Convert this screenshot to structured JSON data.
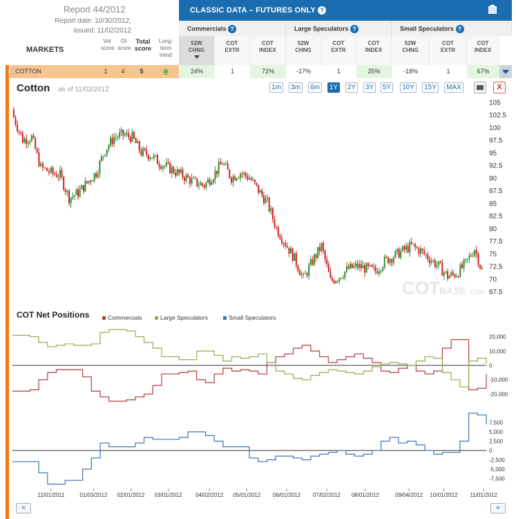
{
  "report": {
    "title": "Report 44/2012",
    "date_line": "Report date: 10/30/2012,",
    "issued_line": "issued: 11/02/2012"
  },
  "header": {
    "markets": "MARKETS",
    "vol_score": "Vol score",
    "oi_score": "OI score",
    "total_score": "Total score",
    "long_term_trend": "Long-term trend",
    "classic_title": "CLASSIC DATA – FUTURES ONLY",
    "help_mark": "?",
    "groups": [
      "Commercials",
      "Large Speculators",
      "Small Speculators"
    ],
    "columns": [
      "52W CHNG",
      "COT EXTR",
      "COT INDEX",
      "52W CHNG",
      "COT EXTR",
      "COT INDEX",
      "52W CHNG",
      "COT EXTR",
      "COT INDEX"
    ]
  },
  "row": {
    "market": "COTTON",
    "vol_score": "1",
    "oi_score": "4",
    "total_score": "5",
    "trend_icon": "up-arrow-icon",
    "trend_color": "#6cbf3c",
    "values": [
      "24%",
      "1",
      "72%",
      "-17%",
      "1",
      "25%",
      "-18%",
      "1",
      "67%"
    ]
  },
  "toolbar": {
    "title": "Cotton",
    "as_of": "as of 11/02/2012",
    "ranges": [
      "1m",
      "3m",
      "6m",
      "1Y",
      "2Y",
      "3Y",
      "5Y",
      "10Y",
      "15Y",
      "MAX"
    ],
    "active_range": "1Y",
    "close_label": "X",
    "print_icon": "print-icon"
  },
  "watermark": {
    "cot": "COT",
    "base": "BASE",
    "com": ".COM"
  },
  "cot_section": {
    "title": "COT Net Positions"
  },
  "nav": {
    "prev": "«",
    "next": "»"
  },
  "colors": {
    "brand_blue": "#1a6db0",
    "orange": "#f47a0f",
    "candle_up": "#2e8b2e",
    "candle_down": "#cc1f1f",
    "commercials": "#b53a3a",
    "large_specs": "#8db04a",
    "small_specs": "#3a73b5"
  },
  "chart_data": [
    {
      "type": "candlestick",
      "title": "Cotton",
      "x_ticks": [
        "12/01/2011",
        "01/03/2012",
        "02/01/2012",
        "03/01/2012",
        "04/02/2012",
        "05/01/2012",
        "06/01/2012",
        "07/02/2012",
        "08/01/2012",
        "09/04/2012",
        "10/01/2012",
        "11/01/2012"
      ],
      "ylim": [
        66,
        106
      ],
      "y_ticks": [
        67.5,
        70,
        72.5,
        75,
        77.5,
        80,
        82.5,
        85,
        87.5,
        90,
        92.5,
        95,
        97.5,
        100,
        102.5,
        105
      ],
      "close_approx": [
        [
          "2011-11-02",
          102.0
        ],
        [
          "2011-11-09",
          97.5
        ],
        [
          "2011-11-16",
          98.0
        ],
        [
          "2011-11-23",
          92.0
        ],
        [
          "2011-12-01",
          91.0
        ],
        [
          "2011-12-08",
          90.5
        ],
        [
          "2011-12-15",
          86.0
        ],
        [
          "2011-12-22",
          87.0
        ],
        [
          "2011-12-29",
          89.0
        ],
        [
          "2012-01-05",
          91.0
        ],
        [
          "2012-01-12",
          95.5
        ],
        [
          "2012-01-19",
          98.0
        ],
        [
          "2012-01-26",
          98.5
        ],
        [
          "2012-02-02",
          98.0
        ],
        [
          "2012-02-09",
          95.0
        ],
        [
          "2012-02-16",
          94.5
        ],
        [
          "2012-02-23",
          93.0
        ],
        [
          "2012-03-01",
          92.0
        ],
        [
          "2012-03-08",
          91.0
        ],
        [
          "2012-03-15",
          90.0
        ],
        [
          "2012-03-22",
          89.0
        ],
        [
          "2012-03-29",
          88.5
        ],
        [
          "2012-04-05",
          90.5
        ],
        [
          "2012-04-12",
          93.0
        ],
        [
          "2012-04-19",
          90.0
        ],
        [
          "2012-04-26",
          91.0
        ],
        [
          "2012-05-03",
          90.0
        ],
        [
          "2012-05-10",
          87.5
        ],
        [
          "2012-05-17",
          85.0
        ],
        [
          "2012-05-24",
          80.0
        ],
        [
          "2012-05-31",
          77.0
        ],
        [
          "2012-06-07",
          74.0
        ],
        [
          "2012-06-14",
          70.0
        ],
        [
          "2012-06-21",
          73.5
        ],
        [
          "2012-06-28",
          76.5
        ],
        [
          "2012-07-05",
          69.5
        ],
        [
          "2012-07-12",
          70.5
        ],
        [
          "2012-07-19",
          72.0
        ],
        [
          "2012-07-26",
          72.5
        ],
        [
          "2012-08-02",
          72.0
        ],
        [
          "2012-08-09",
          71.5
        ],
        [
          "2012-08-16",
          73.5
        ],
        [
          "2012-08-23",
          74.5
        ],
        [
          "2012-08-30",
          75.5
        ],
        [
          "2012-09-06",
          76.5
        ],
        [
          "2012-09-13",
          75.5
        ],
        [
          "2012-09-20",
          74.0
        ],
        [
          "2012-09-27",
          72.5
        ],
        [
          "2012-10-04",
          70.5
        ],
        [
          "2012-10-11",
          71.0
        ],
        [
          "2012-10-18",
          73.0
        ],
        [
          "2012-10-25",
          76.0
        ],
        [
          "2012-11-01",
          70.5
        ]
      ]
    },
    {
      "type": "line",
      "title": "COT Net Positions",
      "legend": "top",
      "y_ticks": [
        20000,
        10000,
        0,
        -10000,
        -20000
      ],
      "y_tick_labels": [
        "20,000",
        "10,000",
        "0",
        "-10,000",
        "-20,000"
      ],
      "ylim": [
        -28000,
        28000
      ],
      "series": [
        {
          "name": "Commercials",
          "values": [
            -18000,
            -18000,
            -17000,
            -10000,
            -5000,
            -3000,
            -3000,
            -3000,
            -8000,
            -18000,
            -22000,
            -25000,
            -25000,
            -24000,
            -22000,
            -20000,
            -14000,
            -6000,
            -6000,
            -5000,
            -4000,
            -10000,
            -12000,
            -6000,
            -2000,
            -4000,
            -3000,
            -4000,
            -6000,
            2000,
            6000,
            8000,
            12000,
            14000,
            10000,
            6000,
            2000,
            4000,
            6000,
            8000,
            5000,
            2000,
            -4000,
            -5000,
            -2000,
            0,
            -4000,
            -6000,
            -4000,
            12000,
            18000,
            18000,
            -17000,
            -16000,
            -6000
          ]
        },
        {
          "name": "Large Speculators",
          "values": [
            21000,
            21000,
            20000,
            16000,
            13000,
            14000,
            15000,
            14000,
            14000,
            15000,
            23000,
            25000,
            25000,
            24000,
            20000,
            16000,
            12000,
            6000,
            6000,
            4000,
            4000,
            10000,
            10000,
            7000,
            3000,
            6000,
            5000,
            6000,
            8000,
            2000,
            -4000,
            -6000,
            -9000,
            -10000,
            -7000,
            -5000,
            -3000,
            -4000,
            -5000,
            -6000,
            -4000,
            -1000,
            1000,
            2000,
            1000,
            0,
            3000,
            6000,
            5000,
            -5000,
            -10000,
            -15000,
            3000,
            5000,
            1000
          ]
        },
        {
          "name": "Small Speculators",
          "values": [
            -3000,
            -3000,
            -3000,
            -6000,
            -9000,
            -9000,
            -8000,
            -8000,
            -5000,
            -2000,
            2000,
            1000,
            1000,
            1000,
            2000,
            3500,
            3000,
            3000,
            3000,
            3500,
            5000,
            5000,
            4000,
            2500,
            1000,
            1000,
            1000,
            -2000,
            -3000,
            -2500,
            -1500,
            -1500,
            -2000,
            -2500,
            -1500,
            -1000,
            -500,
            0,
            -1000,
            -1500,
            -1000,
            0,
            2500,
            3500,
            2000,
            2500,
            1500,
            0,
            -1000,
            -500,
            -500,
            2500,
            10000,
            9500,
            7000
          ]
        }
      ],
      "small_y_ticks": [
        7500,
        5000,
        2500,
        0,
        -2500,
        -5000,
        -7500
      ],
      "small_y_tick_labels": [
        "7,500",
        "5,000",
        "2,500",
        "0",
        "-2,500",
        "-5,000",
        "-7,500"
      ]
    }
  ]
}
